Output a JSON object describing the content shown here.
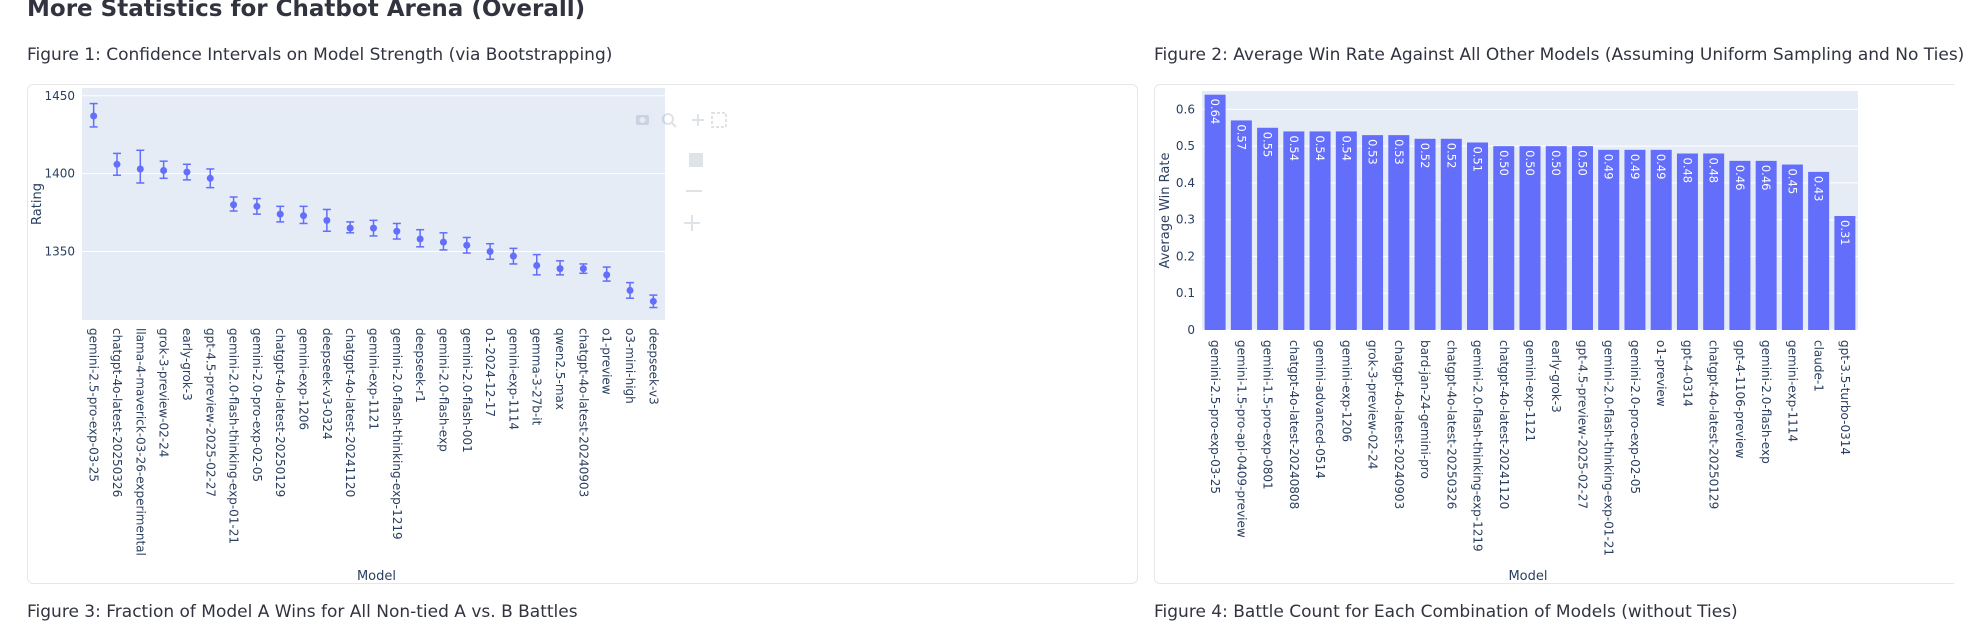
{
  "page": {
    "title": "More Statistics for Chatbot Arena (Overall)",
    "fig1_title": "Figure 1: Confidence Intervals on Model Strength (via Bootstrapping)",
    "fig2_title": "Figure 2: Average Win Rate Against All Other Models (Assuming Uniform Sampling and No Ties)",
    "fig3_title": "Figure 3: Fraction of Model A Wins for All Non-tied A vs. B Battles",
    "fig4_title": "Figure 4: Battle Count for Each Combination of Models (without Ties)"
  },
  "colors": {
    "accent": "#636efa",
    "plot_bg": "#e5ecf6",
    "grid": "#ffffff"
  },
  "modebar_icons": [
    "camera-icon",
    "zoom-icon",
    "pan-icon",
    "box-select-icon",
    "lasso-icon",
    "zoom-in-icon",
    "zoom-out-icon",
    "autoscale-icon",
    "reset-axes-icon",
    "plotly-logo-icon"
  ],
  "chart_data": [
    {
      "type": "scatter",
      "xlabel": "Model",
      "ylabel": "Rating",
      "ylim": [
        1306,
        1455
      ],
      "yticks": [
        1350,
        1400,
        1450
      ],
      "grid": true,
      "categories": [
        "gemini-2.5-pro-exp-03-25",
        "chatgpt-4o-latest-20250326",
        "llama-4-maverick-03-26-experimental",
        "grok-3-preview-02-24",
        "early-grok-3",
        "gpt-4.5-preview-2025-02-27",
        "gemini-2.0-flash-thinking-exp-01-21",
        "gemini-2.0-pro-exp-02-05",
        "chatgpt-4o-latest-20250129",
        "gemini-exp-1206",
        "deepseek-v3-0324",
        "chatgpt-4o-latest-20241120",
        "gemini-exp-1121",
        "gemini-2.0-flash-thinking-exp-1219",
        "deepseek-r1",
        "gemini-2.0-flash-exp",
        "gemini-2.0-flash-001",
        "o1-2024-12-17",
        "gemini-exp-1114",
        "gemma-3-27b-it",
        "qwen2.5-max",
        "chatgpt-4o-latest-20240903",
        "o1-preview",
        "o3-mini-high",
        "deepseek-v3"
      ],
      "values": [
        1437,
        1406,
        1403,
        1402,
        1401,
        1397,
        1380,
        1379,
        1374,
        1373,
        1370,
        1365,
        1365,
        1363,
        1358,
        1356,
        1354,
        1350,
        1347,
        1341,
        1339,
        1339,
        1335,
        1325,
        1318
      ],
      "upper": [
        1445,
        1413,
        1415,
        1408,
        1406,
        1403,
        1385,
        1384,
        1379,
        1379,
        1377,
        1369,
        1370,
        1368,
        1364,
        1362,
        1359,
        1355,
        1352,
        1348,
        1344,
        1342,
        1340,
        1330,
        1322
      ],
      "lower": [
        1430,
        1399,
        1394,
        1397,
        1396,
        1391,
        1376,
        1374,
        1369,
        1368,
        1363,
        1362,
        1360,
        1358,
        1353,
        1351,
        1349,
        1345,
        1342,
        1335,
        1335,
        1336,
        1331,
        1320,
        1314
      ]
    },
    {
      "type": "bar",
      "xlabel": "Model",
      "ylabel": "Average Win Rate",
      "ylim": [
        0,
        0.65
      ],
      "yticks": [
        0,
        0.1,
        0.2,
        0.3,
        0.4,
        0.5,
        0.6
      ],
      "grid": true,
      "categories": [
        "gemini-2.5-pro-exp-03-25",
        "gemini-1.5-pro-api-0409-preview",
        "gemini-1.5-pro-exp-0801",
        "chatgpt-4o-latest-20240808",
        "gemini-advanced-0514",
        "gemini-exp-1206",
        "grok-3-preview-02-24",
        "chatgpt-4o-latest-20240903",
        "bard-jan-24-gemini-pro",
        "chatgpt-4o-latest-20250326",
        "gemini-2.0-flash-thinking-exp-1219",
        "chatgpt-4o-latest-20241120",
        "gemini-exp-1121",
        "early-grok-3",
        "gpt-4.5-preview-2025-02-27",
        "gemini-2.0-flash-thinking-exp-01-21",
        "gemini-2.0-pro-exp-02-05",
        "o1-preview",
        "gpt-4-0314",
        "chatgpt-4o-latest-20250129",
        "gpt-4-1106-preview",
        "gemini-2.0-flash-exp",
        "gemini-exp-1114",
        "claude-1",
        "gpt-3.5-turbo-0314"
      ],
      "values": [
        0.64,
        0.57,
        0.55,
        0.54,
        0.54,
        0.54,
        0.53,
        0.53,
        0.52,
        0.52,
        0.51,
        0.5,
        0.5,
        0.5,
        0.5,
        0.49,
        0.49,
        0.49,
        0.48,
        0.48,
        0.46,
        0.46,
        0.45,
        0.43,
        0.31
      ],
      "labels": [
        "0.64",
        "0.57",
        "0.55",
        "0.54",
        "0.54",
        "0.54",
        "0.53",
        "0.53",
        "0.52",
        "0.52",
        "0.51",
        "0.50",
        "0.50",
        "0.50",
        "0.50",
        "0.49",
        "0.49",
        "0.49",
        "0.48",
        "0.48",
        "0.46",
        "0.46",
        "0.45",
        "0.43",
        "0.31"
      ]
    }
  ]
}
